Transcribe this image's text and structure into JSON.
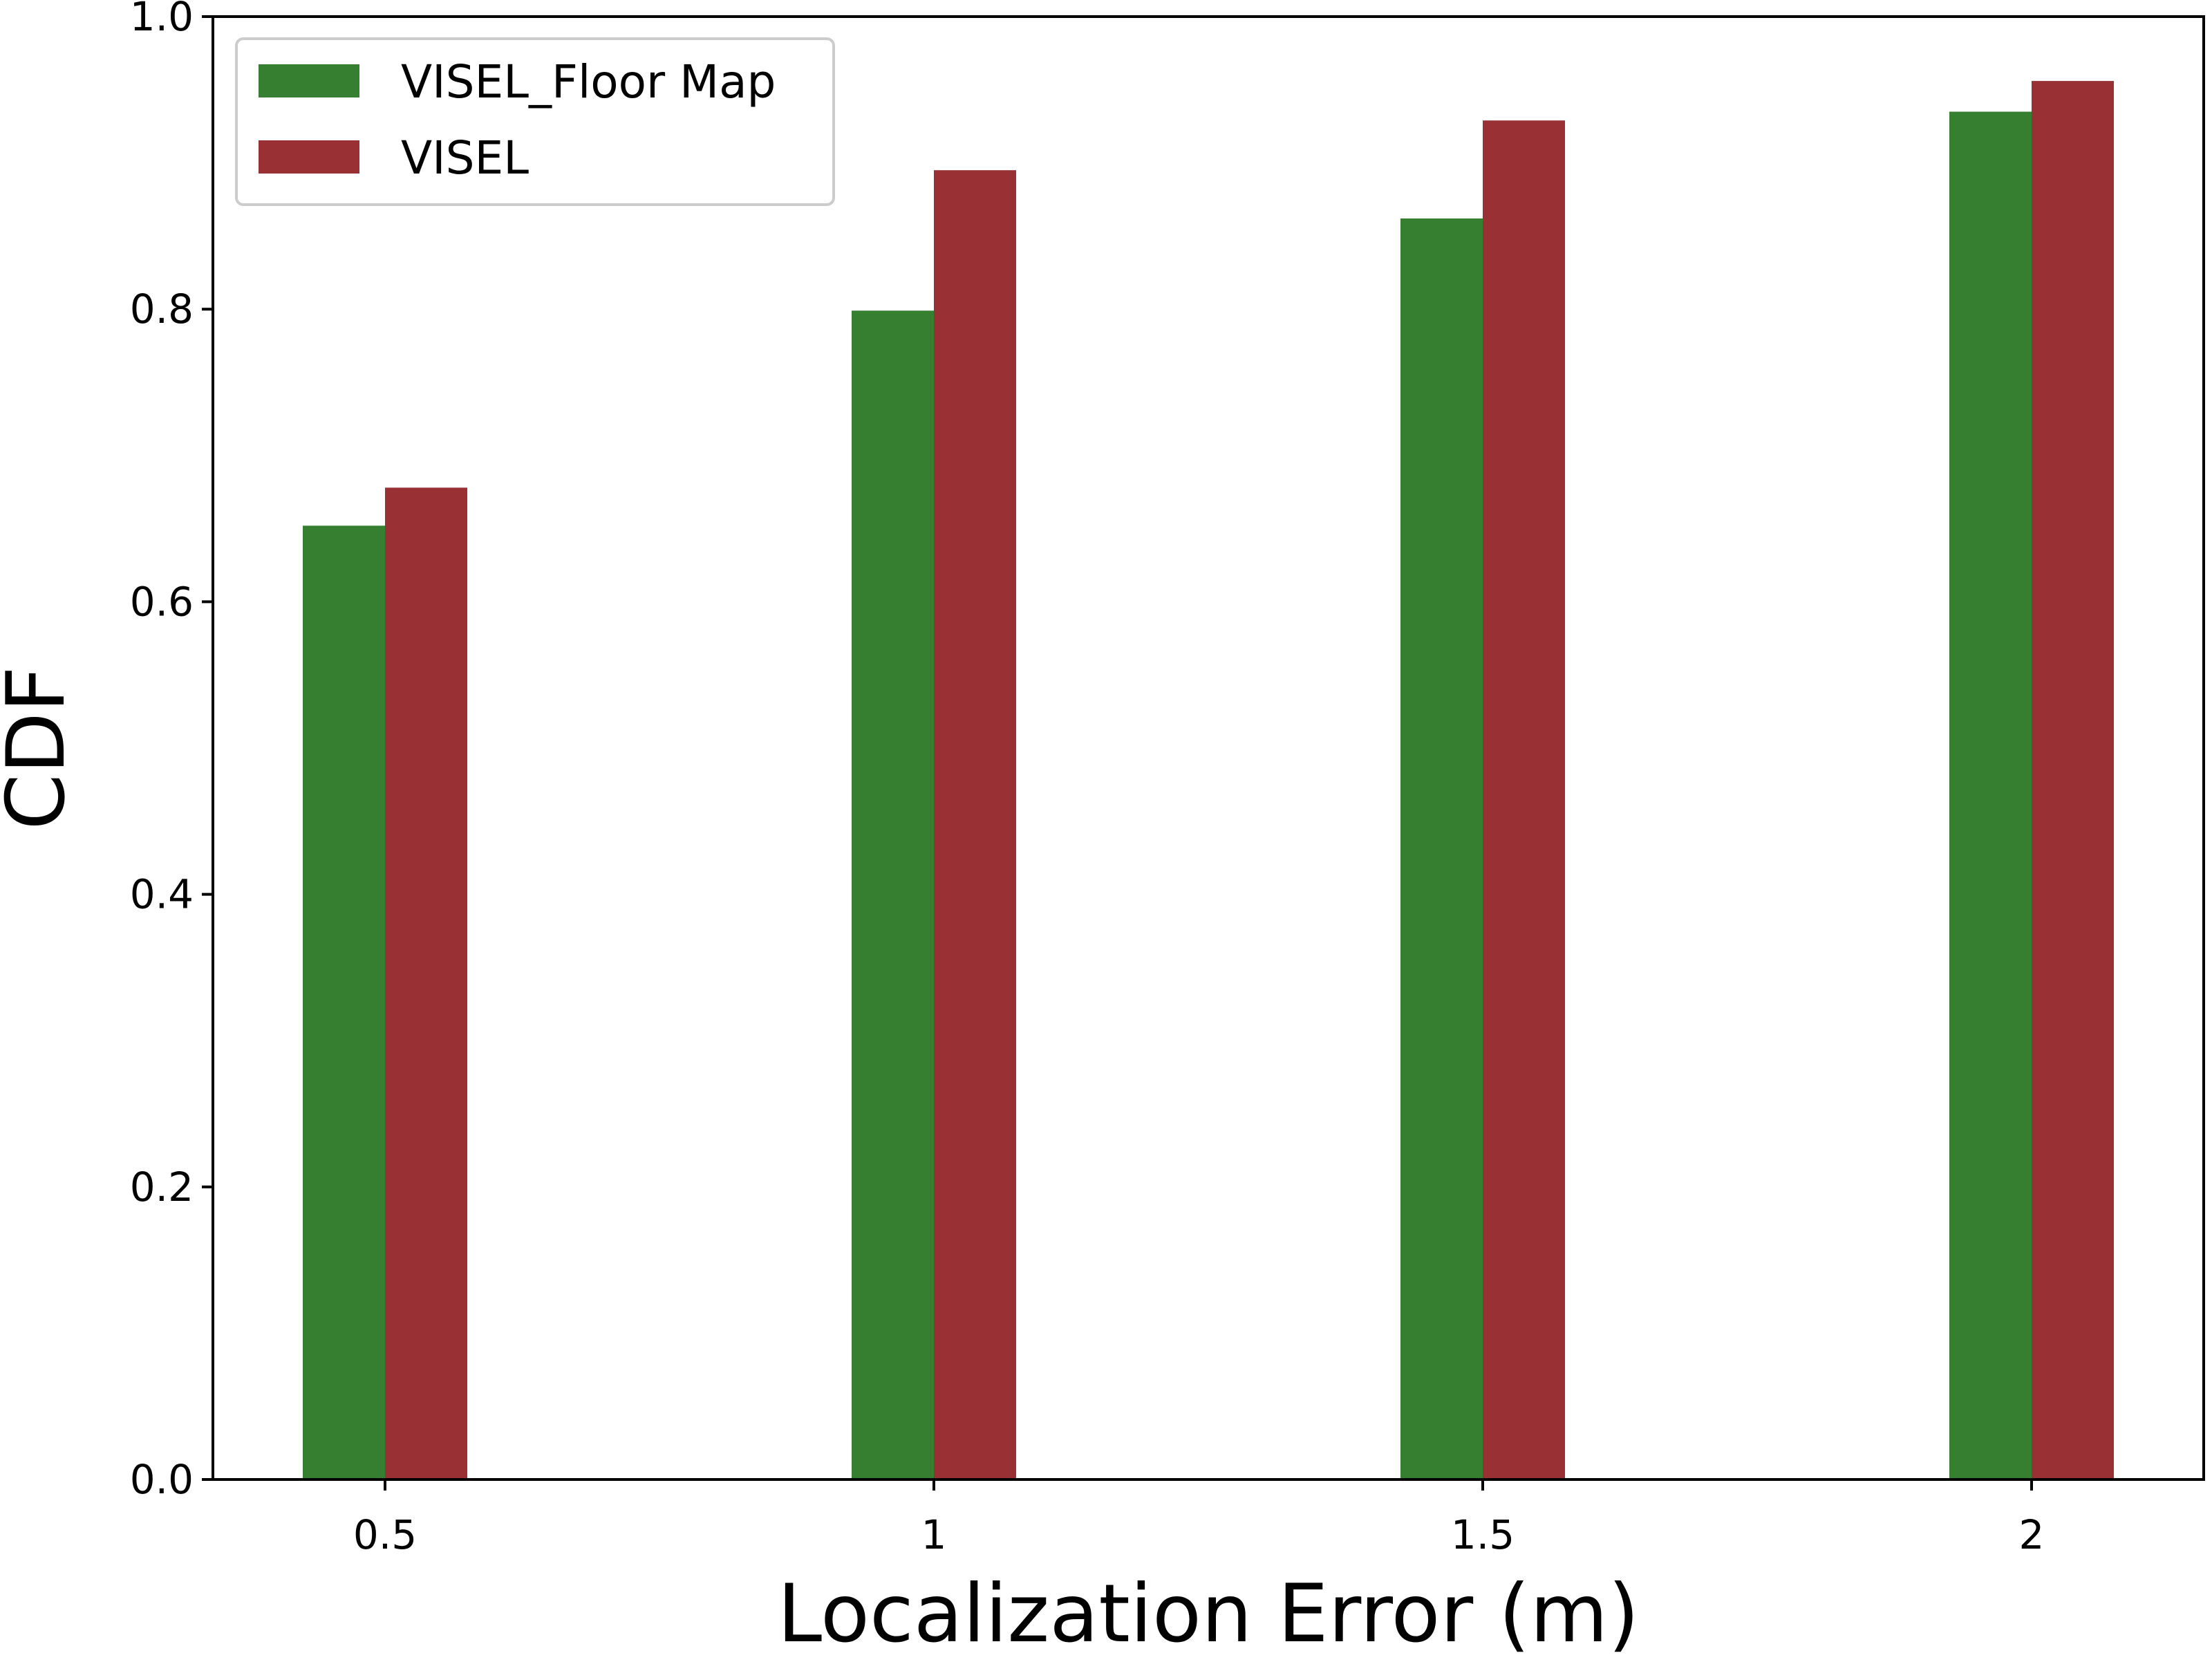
{
  "chart_data": {
    "type": "bar",
    "title": "",
    "xlabel": "Localization Error (m)",
    "ylabel": "CDF",
    "categories": [
      "0.5",
      "1",
      "1.5",
      "2"
    ],
    "series": [
      {
        "name": "VISEL_Floor Map",
        "values": [
          0.652,
          0.799,
          0.862,
          0.935
        ],
        "color": "#367f31"
      },
      {
        "name": "VISEL",
        "values": [
          0.678,
          0.895,
          0.929,
          0.956
        ],
        "color": "#993134"
      }
    ],
    "ylim": [
      0.0,
      1.0
    ],
    "yticks": [
      "0.0",
      "0.2",
      "0.4",
      "0.6",
      "0.8",
      "1.0"
    ],
    "grid": false,
    "legend_position": "top-left"
  }
}
